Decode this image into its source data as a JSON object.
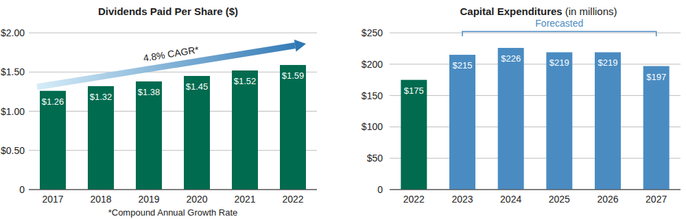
{
  "chart_data": [
    {
      "type": "bar",
      "title": "Dividends Paid Per Share ($)",
      "categories": [
        "2017",
        "2018",
        "2019",
        "2020",
        "2021",
        "2022"
      ],
      "values": [
        1.26,
        1.32,
        1.38,
        1.45,
        1.52,
        1.59
      ],
      "value_labels": [
        "$1.26",
        "$1.32",
        "$1.38",
        "$1.45",
        "$1.52",
        "$1.59"
      ],
      "color": "#006b4f",
      "ylim": [
        0,
        2
      ],
      "yticks": [
        0,
        {
          "value": 0.5,
          "label": "$0.50"
        },
        {
          "value": 1,
          "label": "$1.00"
        },
        {
          "value": 1.5,
          "label": "$1.50"
        },
        {
          "value": 2,
          "label": "$2.00"
        }
      ],
      "grid": true,
      "data_labels": true,
      "annotations": [
        {
          "text": "4.8% CAGR*"
        },
        {
          "text": "*Compound Annual Growth Rate"
        }
      ]
    },
    {
      "type": "bar",
      "title": "Capital Expenditures",
      "subtitle": "(in millions)",
      "categories": [
        "2022",
        "2023",
        "2024",
        "2025",
        "2026",
        "2027"
      ],
      "values": [
        175,
        215,
        226,
        219,
        219,
        197
      ],
      "value_labels": [
        "$175",
        "$215",
        "$226",
        "$219",
        "$219",
        "$197"
      ],
      "colors": [
        "#006b4f",
        "#4a8cc2",
        "#4a8cc2",
        "#4a8cc2",
        "#4a8cc2",
        "#4a8cc2"
      ],
      "ylim": [
        0,
        250
      ],
      "yticks": [
        0,
        {
          "value": 50,
          "label": "$50"
        },
        {
          "value": 100,
          "label": "$100"
        },
        {
          "value": 150,
          "label": "$150"
        },
        {
          "value": 200,
          "label": "$200"
        },
        {
          "value": 250,
          "label": "$250"
        }
      ],
      "grid": true,
      "data_labels": true,
      "annotations": [
        {
          "text": "Forecasted",
          "from": "2023",
          "to": "2027"
        }
      ]
    }
  ]
}
